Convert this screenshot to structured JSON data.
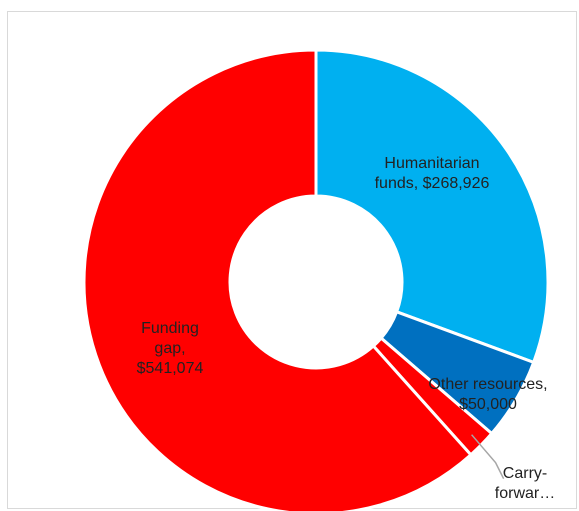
{
  "chart_data": {
    "type": "pie",
    "donut": true,
    "title": "",
    "legend": "none",
    "series": [
      {
        "name": "",
        "values": [
          268926,
          50000,
          18000,
          541074
        ],
        "categories": [
          "Humanitarian funds",
          "Other resources",
          "Carry-forward",
          "Funding gap"
        ]
      }
    ],
    "slices": [
      {
        "key": "humanitarian",
        "value": 268926,
        "color": "#00b0f0",
        "label_lines": [
          "Humanitarian",
          "funds,  $268,926"
        ]
      },
      {
        "key": "other",
        "value": 50000,
        "color": "#0070c0",
        "label_lines": [
          "Other resources,",
          "$50,000"
        ]
      },
      {
        "key": "carry",
        "value": 18000,
        "color": "#ff0000",
        "label_lines": [
          "Carry-",
          "forwar…"
        ]
      },
      {
        "key": "gap",
        "value": 541074,
        "color": "#ff0000",
        "label_lines": [
          "Funding",
          "gap,",
          "$541,074"
        ]
      }
    ],
    "leader_line_color": "#a6a6a6",
    "separator_color": "#ffffff"
  }
}
